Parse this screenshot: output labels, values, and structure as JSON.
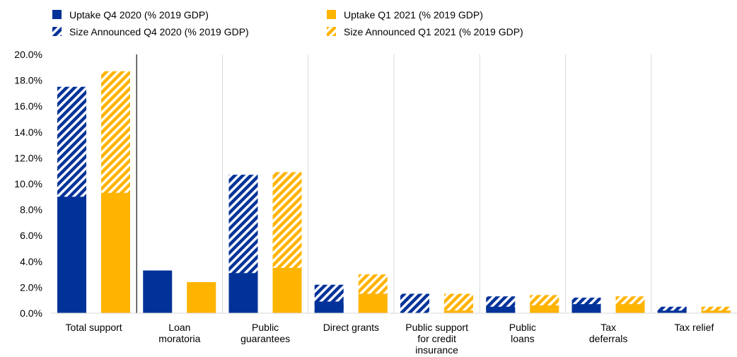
{
  "chart_data": {
    "type": "bar",
    "title": "",
    "xlabel": "",
    "ylabel": "",
    "ylim": [
      0,
      20
    ],
    "y_ticks": [
      "0.0%",
      "2.0%",
      "4.0%",
      "6.0%",
      "8.0%",
      "10.0%",
      "12.0%",
      "14.0%",
      "16.0%",
      "18.0%",
      "20.0%"
    ],
    "grid": "vertical category separators",
    "legend_position": "top",
    "categories": [
      [
        "Total support"
      ],
      [
        "Loan",
        "moratoria"
      ],
      [
        "Public",
        "guarantees"
      ],
      [
        "Direct grants"
      ],
      [
        "Public support",
        "for credit",
        "insurance"
      ],
      [
        "Public",
        "loans"
      ],
      [
        "Tax",
        "deferrals"
      ],
      [
        "Tax relief"
      ]
    ],
    "series": [
      {
        "name": "Uptake Q4 2020 (% 2019 GDP)",
        "values": [
          9.0,
          3.3,
          3.1,
          0.9,
          0.0,
          0.5,
          0.7,
          0.2
        ],
        "color": "#003299",
        "pattern": "solid"
      },
      {
        "name": "Size Announced Q4 2020 (% 2019 GDP)",
        "values": [
          17.5,
          0.0,
          10.7,
          2.2,
          1.5,
          1.3,
          1.2,
          0.5
        ],
        "color": "#003299",
        "pattern": "hatched"
      },
      {
        "name": "Uptake Q1 2021 (% 2019 GDP)",
        "values": [
          9.3,
          2.4,
          3.5,
          1.5,
          0.2,
          0.6,
          0.7,
          0.2
        ],
        "color": "#FFB400",
        "pattern": "solid"
      },
      {
        "name": "Size Announced Q1 2021 (% 2019 GDP)",
        "values": [
          18.7,
          0.0,
          10.9,
          3.0,
          1.5,
          1.4,
          1.3,
          0.5
        ],
        "color": "#FFB400",
        "pattern": "hatched"
      }
    ]
  }
}
